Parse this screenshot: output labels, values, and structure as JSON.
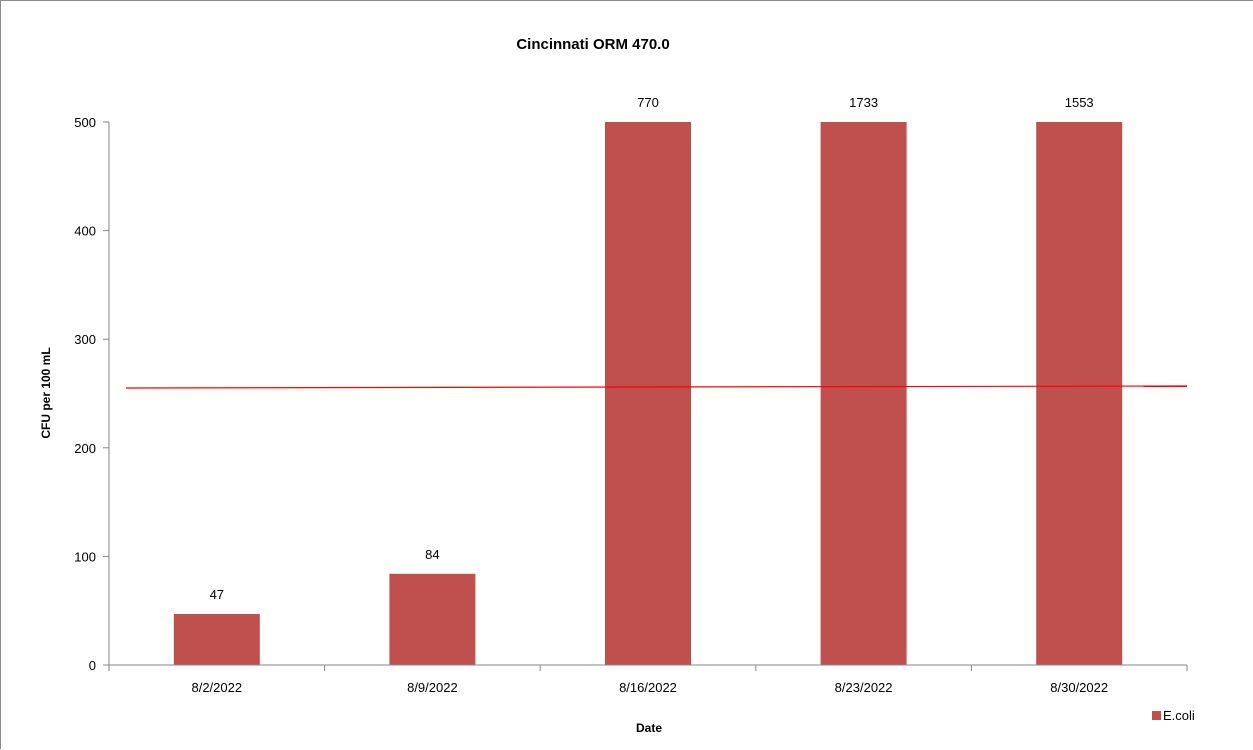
{
  "chart_data": {
    "type": "bar",
    "title": "Cincinnati ORM 470.0",
    "xlabel": "Date",
    "ylabel": "CFU per 100 mL",
    "categories": [
      "8/2/2022",
      "8/9/2022",
      "8/16/2022",
      "8/23/2022",
      "8/30/2022"
    ],
    "series": [
      {
        "name": "E.coli",
        "values": [
          47,
          84,
          500,
          500,
          500
        ],
        "data_labels": [
          "47",
          "84",
          "770",
          "1733",
          "1553"
        ],
        "color": "#c0504d"
      }
    ],
    "reference_line": {
      "value": 256,
      "color": "#ff0000"
    },
    "ylim": [
      0,
      500
    ],
    "yticks": [
      "0",
      "100",
      "200",
      "300",
      "400",
      "500"
    ],
    "grid": false,
    "legend_position": "bottom-right"
  }
}
